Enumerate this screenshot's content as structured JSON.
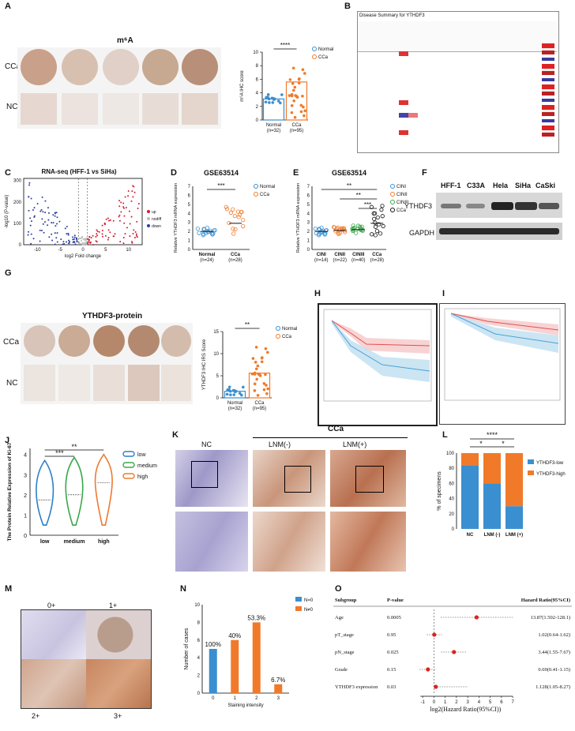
{
  "panels": {
    "A": {
      "letter": "A",
      "title": "m⁶A",
      "rows": [
        "CCa",
        "NC"
      ],
      "chart_data": {
        "type": "bar",
        "categories": [
          "Normal\n(n=32)",
          "CCa\n(n=95)"
        ],
        "cat_names": [
          "Normal",
          "CCa"
        ],
        "cat_n": [
          "(n=32)",
          "(n=95)"
        ],
        "values": [
          3.1,
          5.6
        ],
        "ylabel": "m⁶A IHC score",
        "yticks": [
          "0",
          "2",
          "4",
          "6",
          "8",
          "10"
        ],
        "ylim": [
          0,
          10
        ],
        "legend": [
          "Normal",
          "CCa"
        ],
        "significance": "****",
        "colors": [
          "#3a8fd0",
          "#f07a2a"
        ]
      }
    },
    "B": {
      "letter": "B",
      "title": "Disease Summary for YTHDF3"
    },
    "C": {
      "letter": "C",
      "chart_data": {
        "type": "scatter",
        "title": "RNA-seq (HFF-1 vs SiHa)",
        "xlabel": "log2 Fold change",
        "ylabel": "-log10 (P-value)",
        "xticks": [
          "-10",
          "-5",
          "0",
          "5",
          "10"
        ],
        "yticks": [
          "0",
          "100",
          "200",
          "300"
        ],
        "xlim": [
          -13,
          13
        ],
        "ylim": [
          0,
          310
        ],
        "legend": [
          "up",
          "nodiff",
          "down"
        ],
        "colors": [
          "#d21e32",
          "#bdbdbd",
          "#2a3fa0"
        ]
      }
    },
    "D": {
      "letter": "D",
      "chart_data": {
        "type": "scatter",
        "title": "GSE63514",
        "ylabel": "Relative YTHDF3 mRNA expression",
        "categories": [
          "Normal\n(n=24)",
          "CCa\n(n=28)"
        ],
        "cat_names": [
          "Normal",
          "CCa"
        ],
        "cat_n": [
          "(n=24)",
          "(n=28)"
        ],
        "yticks": [
          "0",
          "1",
          "2",
          "3",
          "4",
          "5",
          "6",
          "7"
        ],
        "ylim": [
          0,
          7
        ],
        "means": [
          2.0,
          2.9
        ],
        "legend": [
          "Normal",
          "CCa"
        ],
        "significance": "***"
      }
    },
    "E": {
      "letter": "E",
      "chart_data": {
        "type": "scatter",
        "title": "GSE63514",
        "ylabel": "Relative YTHDF3 mRNA expression",
        "categories": [
          "CINI\n(n=14)",
          "CINII\n(n=22)",
          "CINIII\n(n=40)",
          "CCa\n(n=28)"
        ],
        "cat_names": [
          "CINI",
          "CINII",
          "CINIII",
          "CCa"
        ],
        "cat_n": [
          "(n=14)",
          "(n=22)",
          "(n=40)",
          "(n=28)"
        ],
        "yticks": [
          "0",
          "1",
          "2",
          "3",
          "4",
          "5",
          "6",
          "7"
        ],
        "ylim": [
          0,
          7
        ],
        "means": [
          2.0,
          2.1,
          2.2,
          2.9
        ],
        "legend": [
          "CINI",
          "CINII",
          "CINIII",
          "CCa"
        ],
        "significance": [
          "**",
          "**",
          "***"
        ]
      }
    },
    "F": {
      "letter": "F",
      "lanes": [
        "HFF-1",
        "C33A",
        "Hela",
        "SiHa",
        "CaSki"
      ],
      "bands": [
        "YTHDF3",
        "GAPDH"
      ]
    },
    "G": {
      "letter": "G",
      "title": "YTHDF3-protein",
      "rows": [
        "CCa",
        "NC"
      ],
      "chart_data": {
        "type": "bar",
        "categories": [
          "Normal\n(n=32)",
          "CCa\n(n=95)"
        ],
        "cat_names": [
          "Normal",
          "CCa"
        ],
        "cat_n": [
          "(n=32)",
          "(n=95)"
        ],
        "values": [
          1.5,
          5.6
        ],
        "ylabel": "YTHDF3 IHC IRS Score",
        "yticks": [
          "0",
          "5",
          "10",
          "15"
        ],
        "ylim": [
          0,
          15
        ],
        "legend": [
          "Normal",
          "CCa"
        ],
        "significance": "**"
      }
    },
    "H": {
      "letter": "H"
    },
    "I": {
      "letter": "I"
    },
    "J": {
      "letter": "J",
      "chart_data": {
        "type": "violin",
        "ylabel": "The Protein Relative Expression of Ki-67",
        "categories": [
          "low",
          "medium",
          "high"
        ],
        "yticks": [
          "0",
          "1",
          "2",
          "3",
          "4"
        ],
        "ylim": [
          0,
          4.3
        ],
        "medians": [
          1.75,
          2.0,
          2.6
        ],
        "legend": [
          "low",
          "medium",
          "high"
        ],
        "colors": [
          "#2f7fc8",
          "#3aa84a",
          "#ee7a30"
        ],
        "significance": [
          "***",
          "**"
        ]
      }
    },
    "K": {
      "letter": "K",
      "group": "CCa",
      "cols": [
        "NC",
        "LNM(-)",
        "LNM(+)"
      ]
    },
    "L": {
      "letter": "L",
      "chart_data": {
        "type": "bar",
        "stacked": true,
        "categories": [
          "NC",
          "LNM (-)",
          "LNM (+)"
        ],
        "series": [
          {
            "name": "YTHDF3-low",
            "values": [
              84,
              60,
              30
            ]
          },
          {
            "name": "YTHDF3-high",
            "values": [
              16,
              40,
              70
            ]
          }
        ],
        "ylabel": "% of specimens",
        "yticks": [
          "0",
          "20",
          "40",
          "60",
          "80",
          "100"
        ],
        "ylim": [
          0,
          100
        ],
        "colors": [
          "#3a8fd0",
          "#f07a2a"
        ],
        "significance": [
          "****",
          "*",
          "*"
        ]
      }
    },
    "M": {
      "letter": "M",
      "labels": [
        "0+",
        "1+",
        "2+",
        "3+"
      ]
    },
    "N": {
      "letter": "N",
      "chart_data": {
        "type": "bar",
        "categories": [
          "0",
          "1",
          "2",
          "3"
        ],
        "series": [
          {
            "name": "N=0",
            "values": [
              5,
              0,
              0,
              0
            ]
          },
          {
            "name": "N≠0",
            "values": [
              0,
              6,
              8,
              1
            ]
          }
        ],
        "data_labels": [
          "100%",
          "40%",
          "53.3%",
          "6.7%"
        ],
        "xlabel": "Staining intensity",
        "ylabel": "Number of cases",
        "yticks": [
          "0",
          "2",
          "4",
          "6",
          "8",
          "10"
        ],
        "ylim": [
          0,
          10
        ],
        "colors": [
          "#3a8fd0",
          "#f07a2a"
        ]
      }
    },
    "O": {
      "letter": "O",
      "chart_data": {
        "type": "forest",
        "headers": [
          "Subgroup",
          "P-value",
          "Hazard Ratio(95%CI)"
        ],
        "rows": [
          {
            "name": "Age",
            "p": "0.0005",
            "est": 3.79,
            "lo": 0.6,
            "hi": 7.0,
            "text": "13.87(1.502-128.1)"
          },
          {
            "name": "pT_stage",
            "p": "0.95",
            "est": 0.03,
            "lo": -0.64,
            "hi": 0.7,
            "text": "1.02(0.64-1.62)"
          },
          {
            "name": "pN_stage",
            "p": "0.025",
            "est": 1.78,
            "lo": 0.63,
            "hi": 2.94,
            "text": "3.44(1.55-7.67)"
          },
          {
            "name": "Grade",
            "p": "0.15",
            "est": -0.53,
            "lo": -1.29,
            "hi": 0.2,
            "text": "0.69(0.41-1.15)"
          },
          {
            "name": "YTHDF3 expression",
            "p": "0.03",
            "est": 0.17,
            "lo": 0.07,
            "hi": 3.05,
            "text": "1.128(1.05-8.27)"
          }
        ],
        "xticks": [
          "-1",
          "0",
          "1",
          "2",
          "3",
          "4",
          "5",
          "6",
          "7"
        ],
        "xlim": [
          -1.5,
          7.2
        ],
        "xlabel": "log2(Hazard Ratio(95%CI))"
      }
    }
  }
}
